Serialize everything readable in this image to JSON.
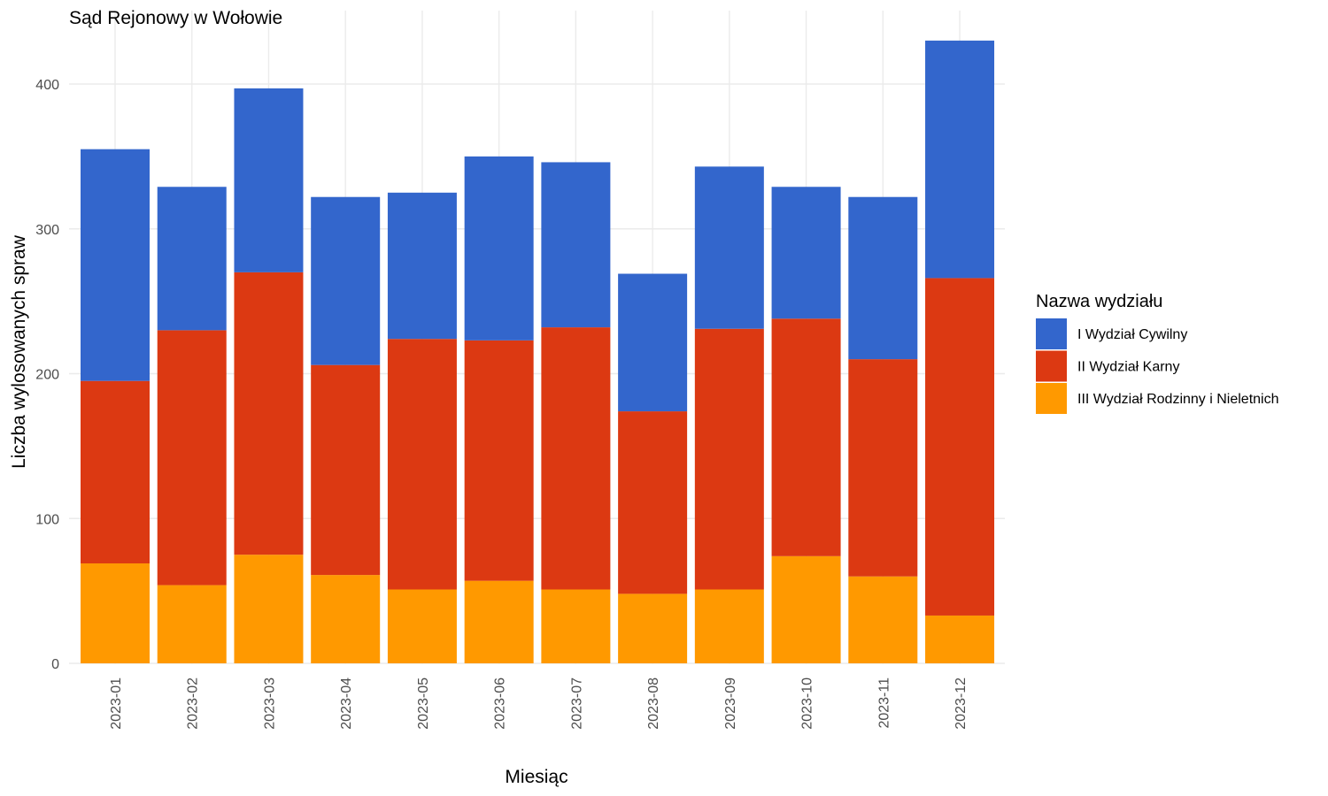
{
  "chart_data": {
    "type": "bar",
    "stacked": true,
    "title": "Sąd Rejonowy w Wołowie",
    "xlabel": "Miesiąc",
    "ylabel": "Liczba wylosowanych spraw",
    "ylim": [
      0,
      435
    ],
    "yticks": [
      0,
      100,
      200,
      300,
      400
    ],
    "grid": true,
    "legend_position": "right",
    "legend_title": "Nazwa wydziału",
    "categories": [
      "2023-01",
      "2023-02",
      "2023-03",
      "2023-04",
      "2023-05",
      "2023-06",
      "2023-07",
      "2023-08",
      "2023-09",
      "2023-10",
      "2023-11",
      "2023-12"
    ],
    "series": [
      {
        "name": "III Wydział Rodzinny i Nieletnich",
        "color": "#ff9900",
        "values": [
          69,
          54,
          75,
          61,
          51,
          57,
          51,
          48,
          51,
          74,
          60,
          33
        ]
      },
      {
        "name": "II Wydział Karny",
        "color": "#dc3912",
        "values": [
          126,
          176,
          195,
          145,
          173,
          166,
          181,
          126,
          180,
          164,
          150,
          233
        ]
      },
      {
        "name": "I Wydział Cywilny",
        "color": "#3366cc",
        "values": [
          160,
          99,
          127,
          116,
          101,
          127,
          114,
          95,
          112,
          91,
          112,
          164
        ]
      }
    ],
    "legend_order": [
      "I Wydział Cywilny",
      "II Wydział Karny",
      "III Wydział Rodzinny i Nieletnich"
    ]
  }
}
